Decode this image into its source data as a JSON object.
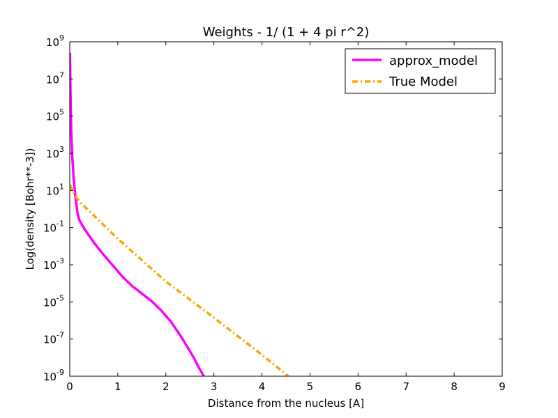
{
  "chart_data": {
    "type": "line",
    "title": "Weights - 1/ (1 + 4 pi r^2)",
    "xlabel": "Distance from the nucleus [A]",
    "ylabel": "Log(density [Bohr**-3])",
    "xlim": [
      0,
      9
    ],
    "ylim_log10": [
      -9,
      9
    ],
    "yscale": "log",
    "grid": false,
    "legend_position": "top-right",
    "x_ticks": [
      0,
      1,
      2,
      3,
      4,
      5,
      6,
      7,
      8,
      9
    ],
    "y_ticks": [
      {
        "base": "10",
        "exp": "9",
        "log10": 9
      },
      {
        "base": "10",
        "exp": "7",
        "log10": 7
      },
      {
        "base": "10",
        "exp": "5",
        "log10": 5
      },
      {
        "base": "10",
        "exp": "3",
        "log10": 3
      },
      {
        "base": "10",
        "exp": "1",
        "log10": 1
      },
      {
        "base": "10",
        "exp": "-1",
        "log10": -1
      },
      {
        "base": "10",
        "exp": "-3",
        "log10": -3
      },
      {
        "base": "10",
        "exp": "-5",
        "log10": -5
      },
      {
        "base": "10",
        "exp": "-7",
        "log10": -7
      },
      {
        "base": "10",
        "exp": "-9",
        "log10": -9
      }
    ],
    "series": [
      {
        "name": "approx_model",
        "color": "#ff00ff",
        "style": "solid",
        "points": [
          [
            0.005,
            8.4
          ],
          [
            0.01,
            7.2
          ],
          [
            0.02,
            5.5
          ],
          [
            0.03,
            4.3
          ],
          [
            0.05,
            2.9
          ],
          [
            0.08,
            1.7
          ],
          [
            0.12,
            0.6
          ],
          [
            0.16,
            -0.2
          ],
          [
            0.2,
            -0.6
          ],
          [
            0.3,
            -1.05
          ],
          [
            0.5,
            -1.8
          ],
          [
            0.7,
            -2.45
          ],
          [
            0.9,
            -3.05
          ],
          [
            1.1,
            -3.65
          ],
          [
            1.3,
            -4.15
          ],
          [
            1.5,
            -4.55
          ],
          [
            1.7,
            -4.95
          ],
          [
            1.9,
            -5.45
          ],
          [
            2.1,
            -6.05
          ],
          [
            2.3,
            -6.8
          ],
          [
            2.5,
            -7.65
          ],
          [
            2.58,
            -8.0
          ],
          [
            2.7,
            -8.6
          ],
          [
            2.79,
            -9.0
          ]
        ]
      },
      {
        "name": "True Model",
        "color": "#ffa500",
        "style": "dashdot",
        "points": [
          [
            0.005,
            1.3
          ],
          [
            0.05,
            1.05
          ],
          [
            0.1,
            0.75
          ],
          [
            0.2,
            0.4
          ],
          [
            1.0,
            -1.6
          ],
          [
            2.0,
            -3.9
          ],
          [
            3.0,
            -5.85
          ],
          [
            4.0,
            -7.85
          ],
          [
            4.55,
            -9.0
          ]
        ]
      }
    ]
  }
}
